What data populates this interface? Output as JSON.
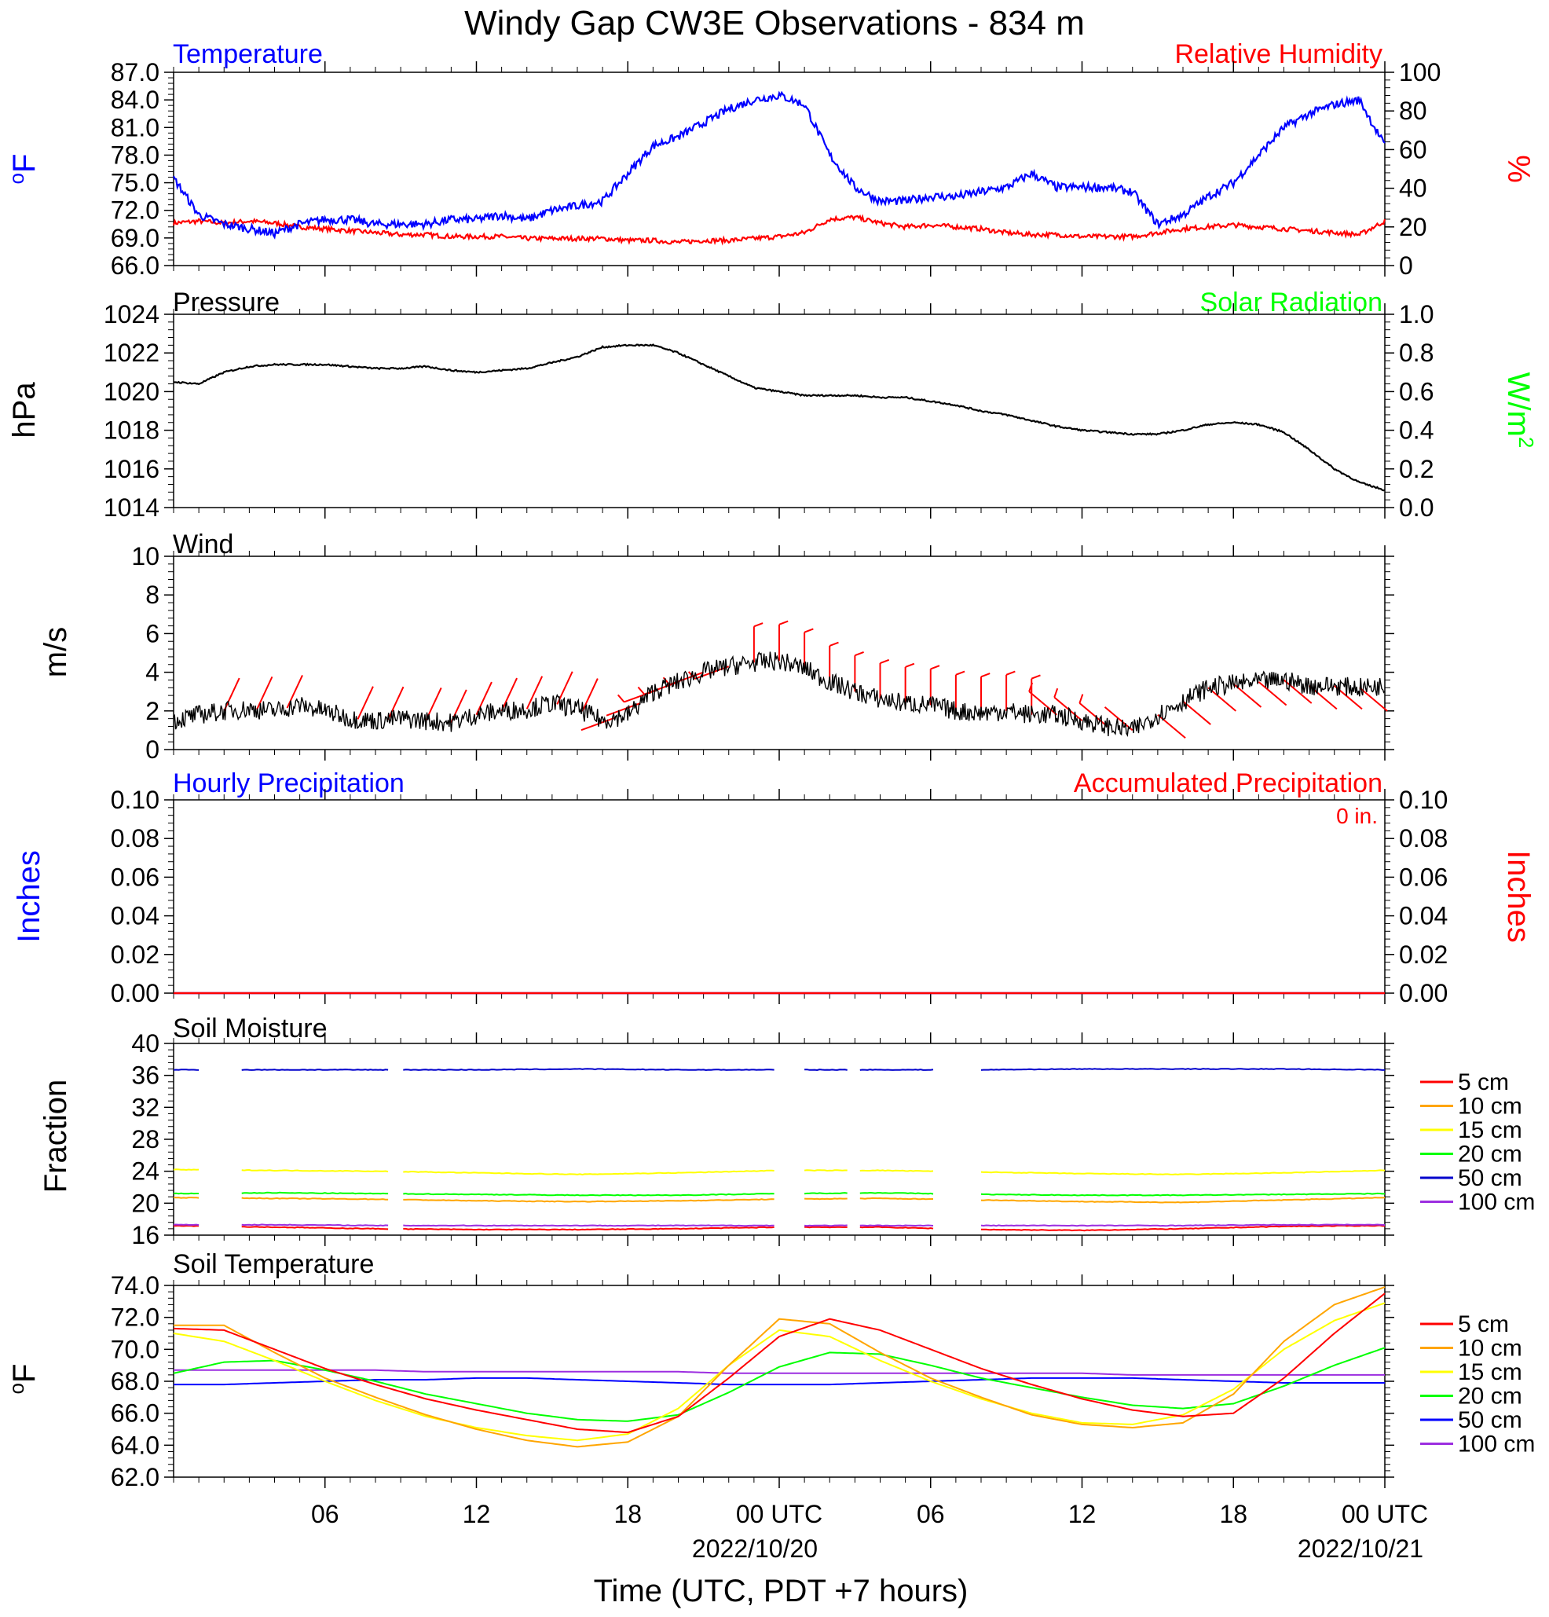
{
  "figure": {
    "title": "Windy Gap CW3E Observations - 834 m",
    "xlabel": "Time (UTC, PDT +7 hours)",
    "x_ticks": [
      "06",
      "12",
      "18",
      "00 UTC",
      "06",
      "12",
      "18",
      "00 UTC"
    ],
    "x_dates": [
      "2022/10/20",
      "2022/10/21"
    ]
  },
  "colors": {
    "blue": "#0000ff",
    "red": "#ff0000",
    "green": "#00ff00",
    "black": "#000000",
    "orange": "#ffa500",
    "yellow": "#ffff00",
    "purple": "#9c2ee0",
    "soil_blue": "#0000cc"
  },
  "chart_data": [
    {
      "id": "temp_rh",
      "type": "line",
      "title_left": "Temperature",
      "title_right": "Relative Humidity",
      "ylabel_left": "oF",
      "ylabel_right": "%",
      "ylim": [
        66,
        87
      ],
      "y_ticks": [
        "66.0",
        "69.0",
        "72.0",
        "75.0",
        "78.0",
        "81.0",
        "84.0",
        "87.0"
      ],
      "y2lim": [
        0,
        100
      ],
      "y2_ticks": [
        "0",
        "20",
        "40",
        "60",
        "80",
        "100"
      ],
      "x_hours": [
        0,
        1,
        2,
        3,
        4,
        5,
        6,
        7,
        8,
        9,
        10,
        11,
        12,
        13,
        14,
        15,
        16,
        17,
        18,
        19,
        20,
        21,
        22,
        23,
        24,
        25,
        26,
        27,
        28,
        29,
        30,
        31,
        32,
        33,
        34,
        35,
        36,
        37,
        38,
        39,
        40,
        41,
        42,
        43,
        44,
        45,
        46,
        47,
        48
      ],
      "series": [
        {
          "name": "Temperature",
          "color": "#0000ff",
          "values": [
            75.5,
            71.5,
            70.5,
            70.0,
            69.5,
            70.5,
            71.0,
            71.0,
            70.5,
            70.5,
            70.5,
            71.0,
            71.0,
            71.5,
            71.0,
            72.0,
            72.5,
            73.0,
            76.0,
            79.0,
            80.0,
            81.5,
            83.0,
            84.0,
            84.5,
            83.5,
            78.0,
            74.5,
            73.0,
            73.0,
            73.5,
            73.5,
            74.0,
            74.5,
            76.0,
            74.5,
            74.5,
            74.5,
            74.0,
            70.5,
            71.5,
            73.5,
            75.0,
            78.0,
            81.0,
            82.5,
            83.5,
            84.0,
            79.0
          ]
        },
        {
          "name": "Relative Humidity",
          "color": "#ff0000",
          "values": [
            22,
            23,
            22,
            23,
            22,
            20,
            19,
            18,
            17,
            16,
            16,
            15,
            15,
            15,
            14,
            14,
            14,
            14,
            13,
            13,
            12,
            13,
            13,
            14,
            15,
            17,
            24,
            25,
            22,
            20,
            21,
            20,
            19,
            17,
            16,
            16,
            15,
            15,
            15,
            17,
            19,
            20,
            21,
            20,
            19,
            18,
            17,
            16,
            23
          ]
        }
      ]
    },
    {
      "id": "pressure",
      "type": "line",
      "title_left": "Pressure",
      "title_right": "Solar Radiation",
      "ylabel_left": "hPa",
      "ylabel_right": "W/m2",
      "ylim": [
        1014,
        1024
      ],
      "y_ticks": [
        "1014",
        "1016",
        "1018",
        "1020",
        "1022",
        "1024"
      ],
      "y2lim": [
        0,
        1
      ],
      "y2_ticks": [
        "0.0",
        "0.2",
        "0.4",
        "0.6",
        "0.8",
        "1.0"
      ],
      "x_hours": [
        0,
        1,
        2,
        3,
        4,
        5,
        6,
        7,
        8,
        9,
        10,
        11,
        12,
        13,
        14,
        15,
        16,
        17,
        18,
        19,
        20,
        21,
        22,
        23,
        24,
        25,
        26,
        27,
        28,
        29,
        30,
        31,
        32,
        33,
        34,
        35,
        36,
        37,
        38,
        39,
        40,
        41,
        42,
        43,
        44,
        45,
        46,
        47,
        48
      ],
      "series": [
        {
          "name": "Pressure",
          "color": "#000000",
          "values": [
            1020.5,
            1020.4,
            1021.0,
            1021.3,
            1021.4,
            1021.4,
            1021.4,
            1021.3,
            1021.2,
            1021.2,
            1021.3,
            1021.1,
            1021.0,
            1021.1,
            1021.2,
            1021.5,
            1021.8,
            1022.3,
            1022.4,
            1022.4,
            1022.0,
            1021.4,
            1020.8,
            1020.2,
            1020.0,
            1019.8,
            1019.8,
            1019.8,
            1019.7,
            1019.7,
            1019.5,
            1019.3,
            1019.0,
            1018.8,
            1018.5,
            1018.2,
            1018.0,
            1017.9,
            1017.8,
            1017.8,
            1018.0,
            1018.3,
            1018.4,
            1018.3,
            1017.9,
            1017.0,
            1016.0,
            1015.3,
            1014.9
          ]
        }
      ]
    },
    {
      "id": "wind",
      "type": "line",
      "title_left": "Wind",
      "ylabel_left": "m/s",
      "ylim": [
        0,
        10
      ],
      "y_ticks": [
        "0",
        "2",
        "4",
        "6",
        "8",
        "10"
      ],
      "x_hours": [
        0,
        1,
        2,
        3,
        4,
        5,
        6,
        7,
        8,
        9,
        10,
        11,
        12,
        13,
        14,
        15,
        16,
        17,
        18,
        19,
        20,
        21,
        22,
        23,
        24,
        25,
        26,
        27,
        28,
        29,
        30,
        31,
        32,
        33,
        34,
        35,
        36,
        37,
        38,
        39,
        40,
        41,
        42,
        43,
        44,
        45,
        46,
        47,
        48
      ],
      "series": [
        {
          "name": "Wind speed",
          "color": "#000000",
          "values": [
            1.5,
            1.8,
            2.0,
            2.1,
            2.0,
            2.3,
            2.0,
            1.6,
            1.5,
            1.6,
            1.5,
            1.4,
            1.8,
            2.0,
            2.1,
            2.4,
            2.1,
            1.5,
            1.8,
            3.0,
            3.5,
            4.0,
            4.3,
            4.5,
            4.6,
            4.2,
            3.5,
            3.0,
            2.6,
            2.4,
            2.3,
            2.0,
            1.9,
            2.0,
            1.8,
            1.8,
            1.5,
            1.2,
            1.0,
            1.8,
            2.5,
            3.2,
            3.4,
            3.5,
            3.6,
            3.3,
            3.3,
            3.2,
            3.3
          ]
        }
      ],
      "barbs_hours": [
        2,
        3.3,
        4.5,
        7.3,
        8.5,
        10,
        11,
        12,
        13,
        14,
        15.2,
        16.2,
        17.5,
        18.5,
        19.2,
        20,
        21,
        22,
        23,
        24,
        25,
        26,
        27,
        28,
        29,
        30,
        31,
        32,
        33,
        34,
        35,
        36,
        37,
        38,
        39,
        40,
        41,
        42,
        43,
        44,
        45,
        46,
        47
      ],
      "barbs_color": "#ff0000"
    },
    {
      "id": "precip",
      "type": "line",
      "title_left": "Hourly Precipitation",
      "title_right": "Accumulated Precipitation",
      "annotation": "0 in.",
      "ylabel_left": "Inches",
      "ylabel_right": "Inches",
      "ylim": [
        0,
        0.1
      ],
      "y_ticks": [
        "0.00",
        "0.02",
        "0.04",
        "0.06",
        "0.08",
        "0.10"
      ],
      "y2_ticks": [
        "0.00",
        "0.02",
        "0.04",
        "0.06",
        "0.08",
        "0.10"
      ],
      "series": [
        {
          "name": "Hourly Precipitation",
          "color": "#0000ff",
          "values": [
            0,
            0
          ]
        },
        {
          "name": "Accumulated Precipitation",
          "color": "#ff0000",
          "values": [
            0,
            0
          ]
        }
      ]
    },
    {
      "id": "soil_moisture",
      "type": "line",
      "title_left": "Soil Moisture",
      "ylabel_left": "Fraction",
      "ylim": [
        16,
        40
      ],
      "y_ticks": [
        "16",
        "20",
        "24",
        "28",
        "32",
        "36",
        "40"
      ],
      "gaps_hours": [
        [
          1,
          2.7
        ],
        [
          8.5,
          9
        ],
        [
          23.9,
          25
        ],
        [
          26.8,
          27.2
        ],
        [
          30.2,
          32
        ]
      ],
      "series": [
        {
          "name": "5 cm",
          "color": "#ff0000",
          "values": [
            17.2,
            17.0,
            16.8,
            16.7,
            16.7,
            16.8,
            17.0,
            17.0,
            16.7,
            16.6,
            16.8,
            17.1,
            17.2
          ]
        },
        {
          "name": "10 cm",
          "color": "#ffa500",
          "values": [
            20.7,
            20.6,
            20.5,
            20.3,
            20.2,
            20.3,
            20.5,
            20.6,
            20.4,
            20.2,
            20.1,
            20.4,
            20.7
          ]
        },
        {
          "name": "15 cm",
          "color": "#ffff00",
          "values": [
            24.2,
            24.1,
            24.0,
            23.8,
            23.6,
            23.8,
            24.1,
            24.1,
            23.9,
            23.7,
            23.6,
            23.8,
            24.1
          ]
        },
        {
          "name": "20 cm",
          "color": "#00ff00",
          "values": [
            21.2,
            21.3,
            21.2,
            21.1,
            21.0,
            21.0,
            21.2,
            21.3,
            21.1,
            21.0,
            21.0,
            21.1,
            21.2
          ]
        },
        {
          "name": "50 cm",
          "color": "#0000cc",
          "values": [
            36.7,
            36.7,
            36.7,
            36.7,
            36.8,
            36.7,
            36.7,
            36.7,
            36.7,
            36.8,
            36.8,
            36.8,
            36.7
          ]
        },
        {
          "name": "100 cm",
          "color": "#9c2ee0",
          "values": [
            17.3,
            17.3,
            17.2,
            17.2,
            17.2,
            17.2,
            17.2,
            17.2,
            17.2,
            17.2,
            17.2,
            17.3,
            17.3
          ]
        }
      ]
    },
    {
      "id": "soil_temp",
      "type": "line",
      "title_left": "Soil Temperature",
      "ylabel_left": "oF",
      "ylim": [
        62,
        74
      ],
      "y_ticks": [
        "62.0",
        "64.0",
        "66.0",
        "68.0",
        "70.0",
        "72.0",
        "74.0"
      ],
      "x_hours": [
        0,
        2,
        4,
        6,
        8,
        10,
        12,
        14,
        16,
        18,
        20,
        22,
        24,
        26,
        28,
        30,
        32,
        34,
        36,
        38,
        40,
        42,
        44,
        46,
        48
      ],
      "series": [
        {
          "name": "5 cm",
          "color": "#ff0000",
          "values": [
            71.3,
            71.2,
            70.0,
            68.8,
            67.8,
            66.9,
            66.2,
            65.6,
            65.0,
            64.8,
            65.8,
            68.2,
            70.8,
            71.9,
            71.2,
            70.0,
            68.8,
            67.8,
            66.9,
            66.2,
            65.8,
            66.0,
            68.2,
            71.0,
            73.5
          ]
        },
        {
          "name": "10 cm",
          "color": "#ffa500",
          "values": [
            71.5,
            71.5,
            69.8,
            68.2,
            67.0,
            65.9,
            65.0,
            64.3,
            63.9,
            64.2,
            65.8,
            69.0,
            71.9,
            71.6,
            69.8,
            68.2,
            67.0,
            65.9,
            65.3,
            65.1,
            65.4,
            67.2,
            70.5,
            72.8,
            73.9
          ]
        },
        {
          "name": "15 cm",
          "color": "#ffff00",
          "values": [
            71.0,
            70.5,
            69.3,
            68.0,
            66.8,
            65.8,
            65.1,
            64.6,
            64.3,
            64.7,
            66.3,
            69.0,
            71.2,
            70.8,
            69.3,
            68.0,
            66.9,
            66.0,
            65.4,
            65.3,
            65.9,
            67.5,
            70.0,
            71.8,
            72.9
          ]
        },
        {
          "name": "20 cm",
          "color": "#00ff00",
          "values": [
            68.5,
            69.2,
            69.3,
            68.7,
            68.0,
            67.2,
            66.6,
            66.0,
            65.6,
            65.5,
            65.9,
            67.3,
            68.9,
            69.8,
            69.7,
            69.0,
            68.2,
            67.6,
            67.0,
            66.5,
            66.3,
            66.6,
            67.7,
            69.0,
            70.1
          ]
        },
        {
          "name": "50 cm",
          "color": "#0000ff",
          "values": [
            67.8,
            67.8,
            67.9,
            68.0,
            68.1,
            68.1,
            68.2,
            68.2,
            68.1,
            68.0,
            67.9,
            67.8,
            67.8,
            67.8,
            67.9,
            68.0,
            68.1,
            68.2,
            68.2,
            68.2,
            68.1,
            68.0,
            67.9,
            67.9,
            67.9
          ]
        },
        {
          "name": "100 cm",
          "color": "#9c2ee0",
          "values": [
            68.7,
            68.7,
            68.7,
            68.7,
            68.7,
            68.6,
            68.6,
            68.6,
            68.6,
            68.6,
            68.6,
            68.5,
            68.5,
            68.5,
            68.5,
            68.5,
            68.5,
            68.5,
            68.5,
            68.4,
            68.4,
            68.4,
            68.4,
            68.4,
            68.4
          ]
        }
      ]
    }
  ],
  "legend": {
    "items": [
      "5 cm",
      "10 cm",
      "15 cm",
      "20 cm",
      "50 cm",
      "100 cm"
    ]
  }
}
